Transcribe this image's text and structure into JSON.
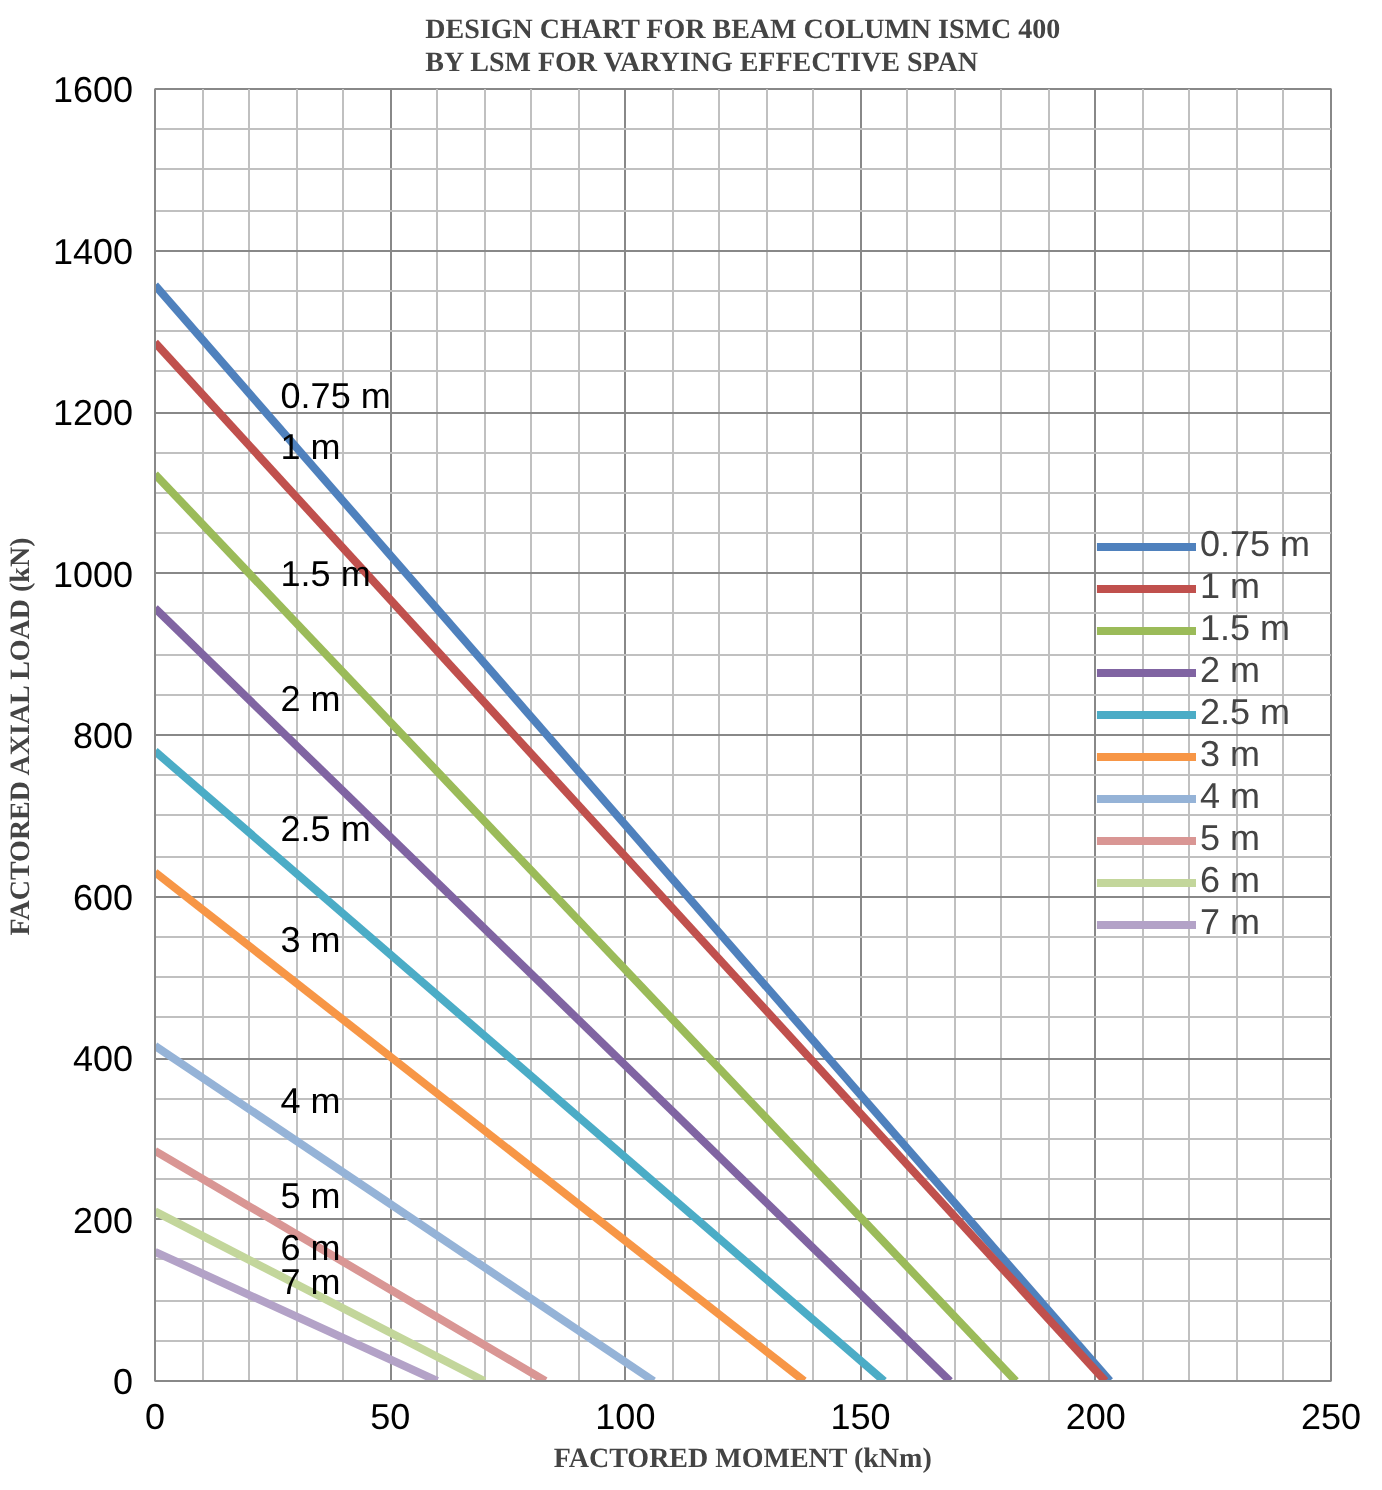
{
  "chart_data": {
    "type": "line",
    "title": "DESIGN CHART FOR BEAM COLUMN ISMC 400\nBY LSM FOR VARYING EFFECTIVE SPAN",
    "xlabel": "FACTORED MOMENT (kNm)",
    "ylabel": "FACTORED AXIAL LOAD (kN)",
    "xlim": [
      0,
      250
    ],
    "xticks": [
      0,
      50,
      100,
      150,
      200,
      250
    ],
    "ylim": [
      0,
      1600
    ],
    "yticks": [
      0,
      200,
      400,
      600,
      800,
      1000,
      1200,
      1400,
      1600
    ],
    "grid": true,
    "legend": "right",
    "marker": "none",
    "line_style": "solid",
    "series": [
      {
        "name": "0.75 m",
        "color": "#4f81bd",
        "x": [
          0,
          203
        ],
        "values": [
          1357,
          0
        ]
      },
      {
        "name": "1 m",
        "color": "#c0504d",
        "x": [
          0,
          202
        ],
        "values": [
          1286,
          0
        ]
      },
      {
        "name": "1.5 m",
        "color": "#9bbb59",
        "x": [
          0,
          183
        ],
        "values": [
          1123,
          0
        ]
      },
      {
        "name": "2 m",
        "color": "#8064a2",
        "x": [
          0,
          169
        ],
        "values": [
          957,
          0
        ]
      },
      {
        "name": "2.5 m",
        "color": "#4bacc6",
        "x": [
          0,
          155
        ],
        "values": [
          780,
          0
        ]
      },
      {
        "name": "3 m",
        "color": "#f79646",
        "x": [
          0,
          138
        ],
        "values": [
          630,
          0
        ]
      },
      {
        "name": "4 m",
        "color": "#95b3d7",
        "x": [
          0,
          106
        ],
        "values": [
          415,
          0
        ]
      },
      {
        "name": "5 m",
        "color": "#d99694",
        "x": [
          0,
          83
        ],
        "values": [
          285,
          0
        ]
      },
      {
        "name": "6 m",
        "color": "#c3d69b",
        "x": [
          0,
          70
        ],
        "values": [
          210,
          0
        ]
      },
      {
        "name": "7 m",
        "color": "#b3a2c7",
        "x": [
          0,
          60
        ],
        "values": [
          160,
          0
        ]
      }
    ]
  }
}
